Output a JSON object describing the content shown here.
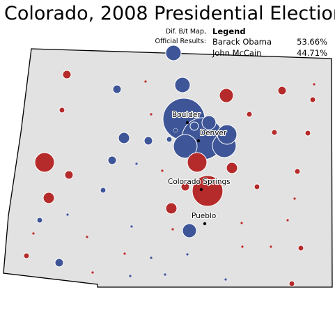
{
  "title": "Colorado, 2008 Presidential Election",
  "diff_note": "Dif. B/t Map, Official Results:",
  "legend": {
    "title": "Legend",
    "entries": [
      {
        "name": "Barack Obama",
        "value": "53.66%",
        "color": "#3e5598"
      },
      {
        "name": "John McCain",
        "value": "44.71%",
        "color": "#b52a2a"
      }
    ]
  },
  "cities": [
    {
      "name": "Boulder"
    },
    {
      "name": "Denver"
    },
    {
      "name": "Colorado Springs"
    },
    {
      "name": "Pueblo"
    }
  ],
  "colors": {
    "state_fill": "#e2e2e2",
    "state_border": "#000000",
    "obama": "#3e5598",
    "mccain": "#b52a2a"
  }
}
